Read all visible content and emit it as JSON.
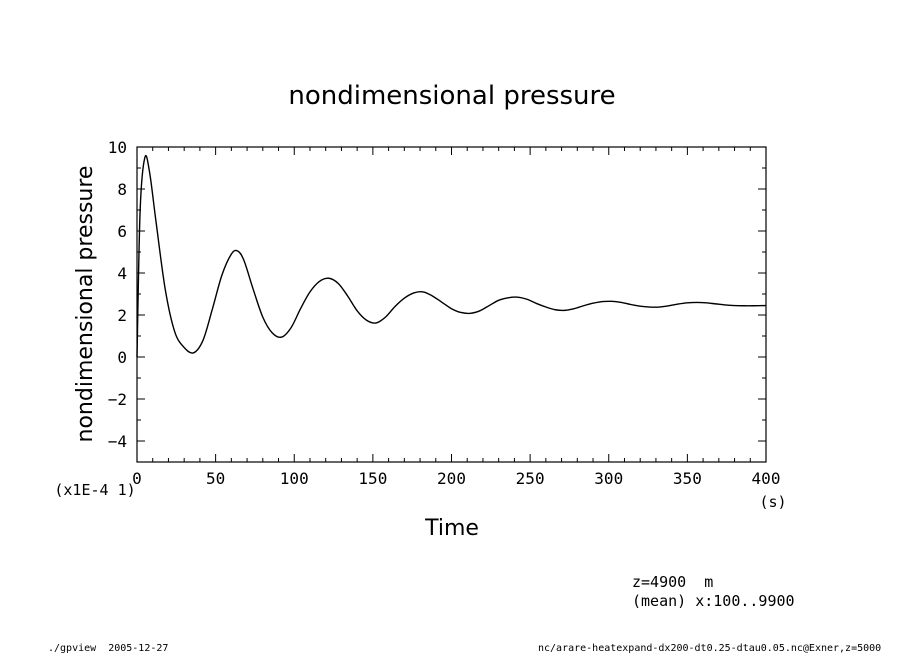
{
  "chart_data": {
    "type": "line",
    "title": "nondimensional pressure",
    "xlabel": "Time",
    "ylabel": "nondimensional pressure",
    "x_unit": "(s)",
    "y_scale_note": "(x1E-4 1)",
    "xlim": [
      0,
      400
    ],
    "ylim": [
      -5,
      10
    ],
    "x_ticks": [
      0,
      50,
      100,
      150,
      200,
      250,
      300,
      350,
      400
    ],
    "y_ticks": [
      -4,
      -2,
      0,
      2,
      4,
      6,
      8,
      10
    ],
    "grid": false,
    "series": [
      {
        "x": [
          0,
          2,
          5,
          8,
          12,
          18,
          24,
          30,
          36,
          42,
          48,
          54,
          60,
          64,
          68,
          74,
          80,
          86,
          92,
          98,
          104,
          110,
          116,
          122,
          128,
          134,
          140,
          146,
          152,
          158,
          164,
          170,
          176,
          182,
          188,
          194,
          200,
          206,
          212,
          218,
          224,
          230,
          236,
          242,
          248,
          254,
          260,
          266,
          272,
          278,
          284,
          290,
          296,
          302,
          308,
          314,
          320,
          326,
          332,
          338,
          344,
          350,
          356,
          362,
          368,
          374,
          380,
          386,
          392,
          400
        ],
        "y": [
          0,
          7.0,
          9.5,
          8.8,
          6.5,
          3.2,
          1.2,
          0.45,
          0.2,
          0.8,
          2.3,
          3.9,
          4.9,
          5.05,
          4.6,
          3.2,
          1.9,
          1.15,
          0.95,
          1.4,
          2.3,
          3.1,
          3.6,
          3.75,
          3.5,
          2.9,
          2.2,
          1.75,
          1.62,
          1.9,
          2.4,
          2.8,
          3.05,
          3.1,
          2.9,
          2.6,
          2.3,
          2.12,
          2.08,
          2.2,
          2.45,
          2.7,
          2.82,
          2.85,
          2.75,
          2.55,
          2.38,
          2.25,
          2.22,
          2.3,
          2.44,
          2.56,
          2.64,
          2.65,
          2.6,
          2.5,
          2.42,
          2.38,
          2.38,
          2.44,
          2.52,
          2.58,
          2.6,
          2.58,
          2.53,
          2.48,
          2.45,
          2.44,
          2.44,
          2.45
        ]
      }
    ]
  },
  "annotations": {
    "level": "z=4900  m",
    "mean": "(mean) x:100..9900",
    "footer_left": "./gpview  2005-12-27",
    "footer_right": "nc/arare-heatexpand-dx200-dt0.25-dtau0.05.nc@Exner,z=5000"
  }
}
